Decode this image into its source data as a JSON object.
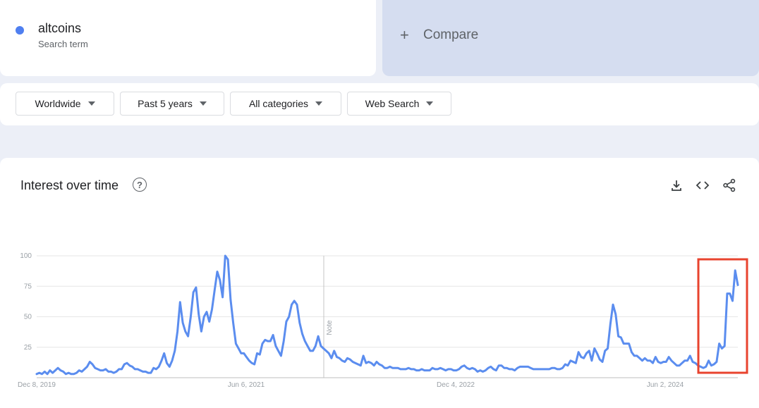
{
  "search_term": {
    "name": "altcoins",
    "subtitle": "Search term",
    "color": "#4f7ff0"
  },
  "compare": {
    "plus": "+",
    "label": "Compare"
  },
  "filters": [
    {
      "label": "Worldwide"
    },
    {
      "label": "Past 5 years"
    },
    {
      "label": "All categories"
    },
    {
      "label": "Web Search"
    }
  ],
  "chart_card": {
    "title": "Interest over time",
    "help_icon": "help-circle-icon",
    "tools": [
      "download-icon",
      "embed-code-icon",
      "share-icon"
    ]
  },
  "chart_data": {
    "type": "line",
    "title": "",
    "xlabel": "",
    "ylabel": "",
    "ylim": [
      0,
      100
    ],
    "y_ticks": [
      100,
      75,
      50,
      25
    ],
    "x_tick_labels": [
      "Dec 8, 2019",
      "Jun 6, 2021",
      "Dec 4, 2022",
      "Jun 2, 2024"
    ],
    "annotation": "Note",
    "grid": true,
    "highlight_color": "#e8432e",
    "series": [
      {
        "color": "#5b8def",
        "values": [
          3,
          4,
          3,
          5,
          3,
          6,
          4,
          6,
          8,
          6,
          5,
          3,
          4,
          3,
          3,
          4,
          6,
          5,
          7,
          9,
          13,
          11,
          8,
          7,
          6,
          6,
          7,
          5,
          5,
          4,
          5,
          7,
          7,
          11,
          12,
          10,
          9,
          7,
          7,
          6,
          5,
          5,
          4,
          4,
          8,
          7,
          9,
          14,
          20,
          12,
          9,
          14,
          22,
          38,
          62,
          45,
          38,
          34,
          50,
          70,
          74,
          52,
          38,
          50,
          54,
          46,
          56,
          72,
          87,
          80,
          66,
          100,
          97,
          64,
          45,
          28,
          24,
          20,
          20,
          17,
          14,
          12,
          11,
          20,
          19,
          28,
          31,
          30,
          30,
          35,
          26,
          22,
          18,
          30,
          46,
          50,
          60,
          63,
          60,
          45,
          36,
          30,
          26,
          22,
          22,
          26,
          34,
          26,
          24,
          22,
          20,
          16,
          22,
          17,
          16,
          14,
          13,
          16,
          15,
          13,
          12,
          11,
          10,
          18,
          12,
          13,
          12,
          10,
          13,
          11,
          10,
          8,
          8,
          9,
          8,
          8,
          8,
          7,
          7,
          7,
          8,
          7,
          7,
          6,
          6,
          7,
          6,
          6,
          6,
          8,
          7,
          7,
          8,
          7,
          6,
          7,
          7,
          6,
          6,
          7,
          9,
          10,
          8,
          7,
          8,
          7,
          5,
          6,
          5,
          6,
          8,
          9,
          7,
          6,
          10,
          10,
          8,
          8,
          7,
          7,
          6,
          8,
          9,
          9,
          9,
          9,
          8,
          7,
          7,
          7,
          7,
          7,
          7,
          7,
          8,
          8,
          7,
          7,
          8,
          11,
          10,
          14,
          13,
          12,
          21,
          17,
          16,
          20,
          22,
          14,
          24,
          20,
          15,
          13,
          22,
          24,
          44,
          60,
          52,
          34,
          33,
          28,
          28,
          28,
          21,
          18,
          18,
          16,
          14,
          16,
          14,
          14,
          12,
          17,
          13,
          12,
          13,
          13,
          17,
          14,
          12,
          10,
          10,
          12,
          14,
          14,
          18,
          13,
          12,
          10,
          9,
          8,
          9,
          14,
          10,
          11,
          13,
          28,
          24,
          26,
          69,
          69,
          63,
          88,
          76
        ]
      }
    ]
  }
}
